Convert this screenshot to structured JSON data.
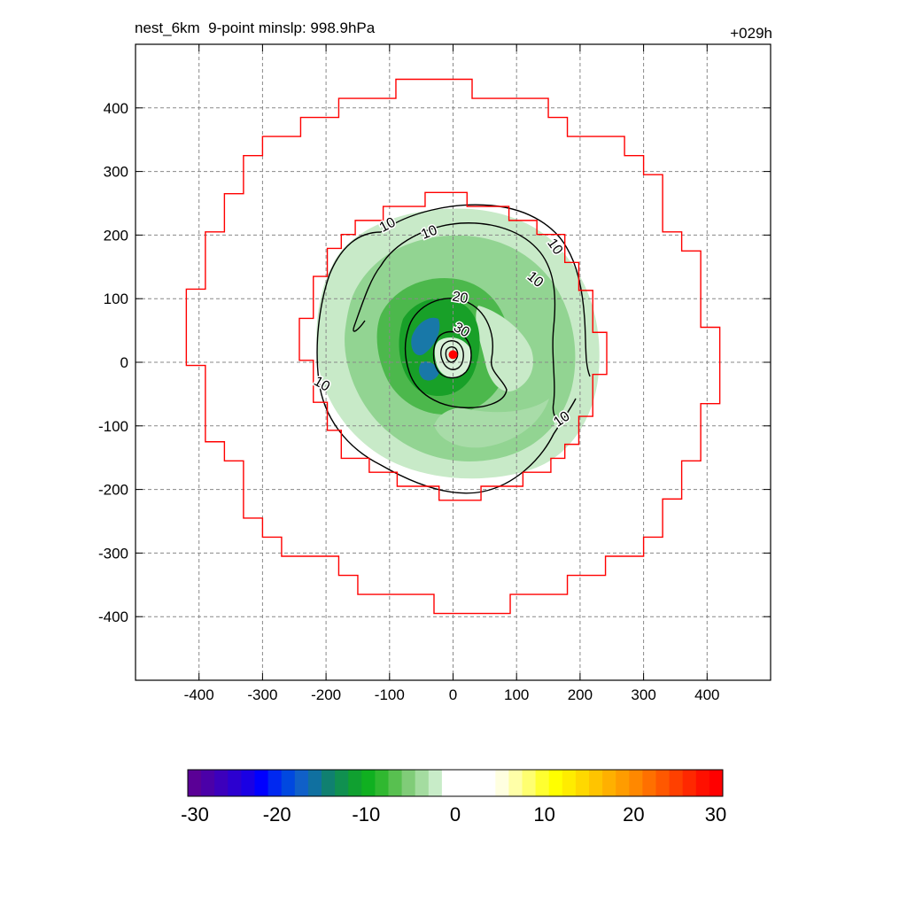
{
  "header": {
    "left": "nest_6km  9-point minslp: 998.9hPa",
    "right": "+029h"
  },
  "chart_data": [
    {
      "type": "heatmap",
      "title": "nest_6km  9-point minslp: 998.9hPa",
      "subtitle": "+029h",
      "xlim": [
        -500,
        500
      ],
      "ylim": [
        -500,
        500
      ],
      "x_ticks": [
        -400,
        -300,
        -200,
        -100,
        0,
        100,
        200,
        300,
        400
      ],
      "y_ticks": [
        400,
        300,
        200,
        100,
        0,
        -100,
        -200,
        -300,
        -400
      ],
      "grid": true,
      "contour_labels": [
        {
          "text": "10",
          "x": -100,
          "y": 210,
          "angle": -28
        },
        {
          "text": "10",
          "x": -35,
          "y": 198,
          "angle": -22
        },
        {
          "text": "10",
          "x": 155,
          "y": 178,
          "angle": 55
        },
        {
          "text": "10",
          "x": 125,
          "y": 125,
          "angle": 40
        },
        {
          "text": "10",
          "x": -210,
          "y": -40,
          "angle": 30
        },
        {
          "text": "10",
          "x": 175,
          "y": -95,
          "angle": -35
        },
        {
          "text": "20",
          "x": 10,
          "y": 95,
          "angle": 10
        },
        {
          "text": "30",
          "x": 10,
          "y": 45,
          "angle": 30
        }
      ],
      "storm_center": {
        "x": 0,
        "y": 12
      }
    },
    {
      "type": "heatmap",
      "colorbar": true,
      "range": [
        -30,
        30
      ],
      "tick_labels": [
        "-30",
        "-20",
        "-10",
        "0",
        "10",
        "20",
        "30"
      ],
      "colors": [
        "#5a0096",
        "#4b00a8",
        "#3c00bc",
        "#2c00d0",
        "#1a00e4",
        "#0000ff",
        "#0028f0",
        "#0048e0",
        "#1060c8",
        "#1070a0",
        "#108070",
        "#109050",
        "#10a030",
        "#10b020",
        "#30b830",
        "#58c050",
        "#80cc78",
        "#a4dca0",
        "#c8ecc8",
        "#ffffff",
        "#ffffff",
        "#ffffff",
        "#ffffff",
        "#ffffe0",
        "#ffffa8",
        "#ffff70",
        "#ffff30",
        "#ffff00",
        "#ffec00",
        "#ffd800",
        "#ffc400",
        "#ffb000",
        "#ff9c00",
        "#ff8800",
        "#ff7000",
        "#ff5800",
        "#ff4000",
        "#ff2800",
        "#ff1000",
        "#ff0000"
      ]
    }
  ]
}
